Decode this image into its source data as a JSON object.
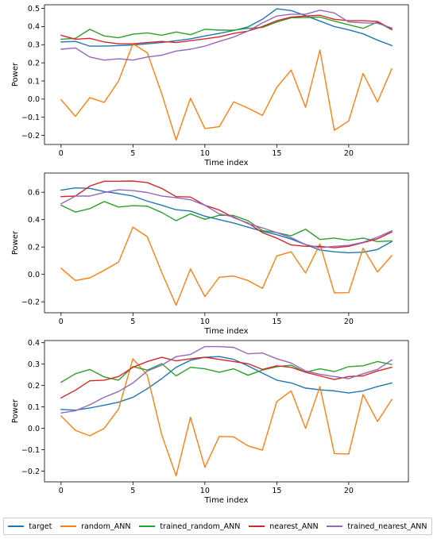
{
  "chart_data": [
    {
      "type": "line",
      "xlabel": "Time index",
      "ylabel": "Power",
      "xlim": [
        -1.15,
        24.15
      ],
      "ylim": [
        -0.25,
        0.52
      ],
      "xticks": [
        0,
        5,
        10,
        15,
        20
      ],
      "yticks": [
        -0.2,
        -0.1,
        0.0,
        0.1,
        0.2,
        0.3,
        0.4,
        0.5
      ],
      "ytick_labels": [
        "−0.2",
        "−0.1",
        "0.0",
        "0.1",
        "0.2",
        "0.3",
        "0.4",
        "0.5"
      ],
      "x": [
        0,
        1,
        2,
        3,
        4,
        5,
        6,
        7,
        8,
        9,
        10,
        11,
        12,
        13,
        14,
        15,
        16,
        17,
        18,
        19,
        20,
        21,
        22,
        23
      ],
      "series": [
        {
          "name": "target",
          "values": [
            0.315,
            0.318,
            0.292,
            0.292,
            0.295,
            0.298,
            0.305,
            0.312,
            0.322,
            0.332,
            0.348,
            0.362,
            0.378,
            0.398,
            0.44,
            0.498,
            0.488,
            0.46,
            0.43,
            0.4,
            0.382,
            0.36,
            0.325,
            0.295
          ]
        },
        {
          "name": "random_ANN",
          "values": [
            -0.003,
            -0.095,
            0.008,
            -0.018,
            0.1,
            0.305,
            0.255,
            0.03,
            -0.225,
            0.005,
            -0.162,
            -0.152,
            -0.015,
            -0.05,
            -0.09,
            0.065,
            0.16,
            -0.045,
            0.27,
            -0.172,
            -0.12,
            0.142,
            -0.015,
            0.168
          ]
        },
        {
          "name": "trained_random_ANN",
          "values": [
            0.33,
            0.335,
            0.385,
            0.348,
            0.338,
            0.358,
            0.365,
            0.352,
            0.37,
            0.355,
            0.385,
            0.38,
            0.38,
            0.39,
            0.395,
            0.425,
            0.448,
            0.45,
            0.452,
            0.43,
            0.41,
            0.39,
            0.425,
            0.382
          ]
        },
        {
          "name": "nearest_ANN",
          "values": [
            0.352,
            0.33,
            0.335,
            0.315,
            0.305,
            0.305,
            0.312,
            0.318,
            0.312,
            0.322,
            0.332,
            0.343,
            0.362,
            0.375,
            0.4,
            0.432,
            0.452,
            0.458,
            0.462,
            0.44,
            0.432,
            0.432,
            0.428,
            0.385
          ]
        },
        {
          "name": "trained_nearest_ANN",
          "values": [
            0.275,
            0.282,
            0.232,
            0.215,
            0.222,
            0.215,
            0.232,
            0.242,
            0.265,
            0.275,
            0.292,
            0.318,
            0.342,
            0.375,
            0.42,
            0.458,
            0.468,
            0.468,
            0.49,
            0.475,
            0.425,
            0.42,
            0.418,
            0.392
          ]
        }
      ]
    },
    {
      "type": "line",
      "xlabel": "Time index",
      "ylabel": "Power",
      "xlim": [
        -1.15,
        24.15
      ],
      "ylim": [
        -0.28,
        0.74
      ],
      "xticks": [
        0,
        5,
        10,
        15,
        20
      ],
      "yticks": [
        -0.2,
        0.0,
        0.2,
        0.4,
        0.6
      ],
      "ytick_labels": [
        "−0.2",
        "0.0",
        "0.2",
        "0.4",
        "0.6"
      ],
      "x": [
        0,
        1,
        2,
        3,
        4,
        5,
        6,
        7,
        8,
        9,
        10,
        11,
        12,
        13,
        14,
        15,
        16,
        17,
        18,
        19,
        20,
        21,
        22,
        23
      ],
      "series": [
        {
          "name": "target",
          "values": [
            0.615,
            0.632,
            0.628,
            0.605,
            0.59,
            0.572,
            0.535,
            0.505,
            0.472,
            0.462,
            0.425,
            0.4,
            0.375,
            0.345,
            0.315,
            0.29,
            0.258,
            0.218,
            0.178,
            0.165,
            0.158,
            0.162,
            0.182,
            0.24
          ]
        },
        {
          "name": "random_ANN",
          "values": [
            0.045,
            -0.045,
            -0.025,
            0.03,
            0.09,
            0.345,
            0.275,
            0.015,
            -0.225,
            0.04,
            -0.162,
            -0.02,
            -0.012,
            -0.045,
            -0.102,
            0.135,
            0.165,
            0.01,
            0.222,
            -0.135,
            -0.133,
            0.192,
            0.018,
            0.138
          ]
        },
        {
          "name": "trained_random_ANN",
          "values": [
            0.505,
            0.455,
            0.48,
            0.532,
            0.492,
            0.502,
            0.498,
            0.452,
            0.392,
            0.442,
            0.402,
            0.432,
            0.43,
            0.392,
            0.32,
            0.305,
            0.282,
            0.33,
            0.255,
            0.265,
            0.25,
            0.265,
            0.24,
            0.245
          ]
        },
        {
          "name": "nearest_ANN",
          "values": [
            0.568,
            0.572,
            0.645,
            0.68,
            0.68,
            0.682,
            0.67,
            0.628,
            0.568,
            0.565,
            0.505,
            0.47,
            0.415,
            0.375,
            0.305,
            0.265,
            0.215,
            0.205,
            0.205,
            0.195,
            0.205,
            0.232,
            0.26,
            0.31
          ]
        },
        {
          "name": "trained_nearest_ANN",
          "values": [
            0.515,
            0.572,
            0.572,
            0.598,
            0.618,
            0.612,
            0.598,
            0.572,
            0.56,
            0.545,
            0.505,
            0.442,
            0.42,
            0.37,
            0.34,
            0.305,
            0.268,
            0.218,
            0.195,
            0.205,
            0.212,
            0.235,
            0.272,
            0.318
          ]
        }
      ]
    },
    {
      "type": "line",
      "xlabel": "Time index",
      "ylabel": "Power",
      "xlim": [
        -1.15,
        24.15
      ],
      "ylim": [
        -0.25,
        0.41
      ],
      "xticks": [
        0,
        5,
        10,
        15,
        20
      ],
      "yticks": [
        -0.2,
        -0.1,
        0.0,
        0.1,
        0.2,
        0.3,
        0.4
      ],
      "ytick_labels": [
        "−0.2",
        "−0.1",
        "0.0",
        "0.1",
        "0.2",
        "0.3",
        "0.4"
      ],
      "x": [
        0,
        1,
        2,
        3,
        4,
        5,
        6,
        7,
        8,
        9,
        10,
        11,
        12,
        13,
        14,
        15,
        16,
        17,
        18,
        19,
        20,
        21,
        22,
        23
      ],
      "series": [
        {
          "name": "target",
          "values": [
            0.088,
            0.085,
            0.095,
            0.108,
            0.122,
            0.145,
            0.185,
            0.232,
            0.285,
            0.318,
            0.332,
            0.335,
            0.322,
            0.292,
            0.258,
            0.225,
            0.212,
            0.188,
            0.18,
            0.175,
            0.165,
            0.175,
            0.195,
            0.212
          ]
        },
        {
          "name": "random_ANN",
          "values": [
            0.058,
            -0.01,
            -0.035,
            0.0,
            0.09,
            0.325,
            0.248,
            -0.03,
            -0.222,
            0.052,
            -0.182,
            -0.038,
            -0.04,
            -0.082,
            -0.102,
            0.125,
            0.175,
            0.0,
            0.195,
            -0.118,
            -0.12,
            0.158,
            0.032,
            0.135
          ]
        },
        {
          "name": "trained_random_ANN",
          "values": [
            0.215,
            0.255,
            0.275,
            0.24,
            0.225,
            0.288,
            0.272,
            0.302,
            0.245,
            0.285,
            0.278,
            0.262,
            0.278,
            0.248,
            0.272,
            0.288,
            0.295,
            0.262,
            0.278,
            0.265,
            0.288,
            0.292,
            0.312,
            0.298
          ]
        },
        {
          "name": "nearest_ANN",
          "values": [
            0.142,
            0.178,
            0.222,
            0.225,
            0.242,
            0.285,
            0.312,
            0.332,
            0.315,
            0.325,
            0.332,
            0.322,
            0.312,
            0.302,
            0.275,
            0.292,
            0.285,
            0.262,
            0.245,
            0.228,
            0.242,
            0.245,
            0.268,
            0.285
          ]
        },
        {
          "name": "trained_nearest_ANN",
          "values": [
            0.072,
            0.082,
            0.11,
            0.145,
            0.172,
            0.212,
            0.268,
            0.295,
            0.335,
            0.345,
            0.382,
            0.382,
            0.378,
            0.348,
            0.352,
            0.325,
            0.305,
            0.268,
            0.252,
            0.242,
            0.232,
            0.255,
            0.275,
            0.32
          ]
        }
      ]
    }
  ],
  "legend": [
    {
      "label": "target",
      "color": "#1f77b4"
    },
    {
      "label": "random_ANN",
      "color": "#ff7f0e"
    },
    {
      "label": "trained_random_ANN",
      "color": "#2ca02c"
    },
    {
      "label": "nearest_ANN",
      "color": "#d62728"
    },
    {
      "label": "trained_nearest_ANN",
      "color": "#9467bd"
    }
  ]
}
